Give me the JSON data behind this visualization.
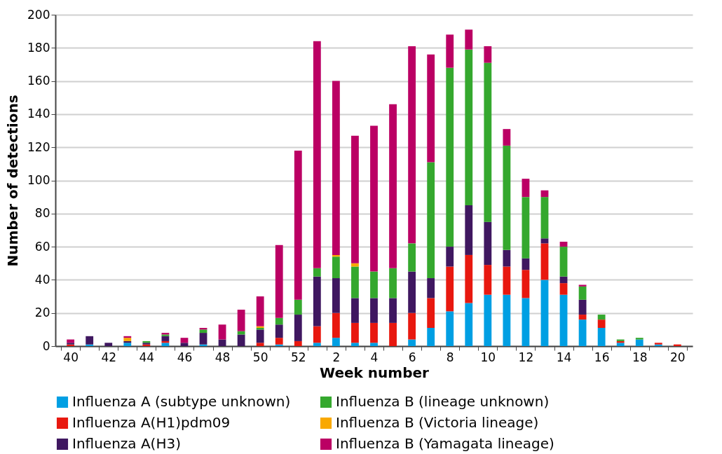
{
  "chart_data": {
    "type": "bar",
    "xlabel": "Week number",
    "ylabel": "Number of detections",
    "categories": [
      "40",
      null,
      "42",
      null,
      "44",
      null,
      "46",
      null,
      "48",
      null,
      "50",
      null,
      "52",
      null,
      "2",
      null,
      "4",
      null,
      "6",
      null,
      "8",
      null,
      "10",
      null,
      "12",
      null,
      "14",
      null,
      "16",
      null,
      "18",
      null,
      "20"
    ],
    "stacked": true,
    "ylim": [
      0,
      200
    ],
    "yticks": [
      0,
      20,
      40,
      60,
      80,
      100,
      120,
      140,
      160,
      180,
      200
    ],
    "grid": "y",
    "legend": "bottom",
    "series": [
      {
        "name": "Influenza A (subtype unknown)",
        "color": "#009fe3",
        "values": [
          0,
          1,
          0,
          2,
          0,
          2,
          0,
          1,
          0,
          0,
          0,
          1,
          0,
          2,
          5,
          2,
          2,
          0,
          4,
          11,
          21,
          26,
          31,
          31,
          29,
          40,
          31,
          16,
          11,
          2,
          4,
          1,
          0
        ]
      },
      {
        "name": "Influenza A(H1)pdm09",
        "color": "#e8180f",
        "values": [
          1,
          0,
          0,
          0,
          1,
          1,
          0,
          0,
          0,
          0,
          2,
          4,
          3,
          10,
          15,
          12,
          12,
          14,
          16,
          18,
          27,
          29,
          18,
          17,
          17,
          22,
          7,
          3,
          5,
          1,
          0,
          1,
          1
        ]
      },
      {
        "name": "Influenza A(H3)",
        "color": "#3f1760",
        "values": [
          1,
          5,
          2,
          1,
          1,
          3,
          2,
          7,
          4,
          7,
          8,
          8,
          16,
          30,
          21,
          15,
          15,
          15,
          25,
          12,
          12,
          30,
          26,
          10,
          7,
          3,
          4,
          9,
          0,
          0,
          0,
          0,
          0
        ]
      },
      {
        "name": "Influenza B (lineage unknown)",
        "color": "#35a82e",
        "values": [
          0,
          0,
          0,
          0,
          1,
          1,
          0,
          2,
          0,
          2,
          1,
          4,
          9,
          5,
          13,
          19,
          16,
          18,
          17,
          70,
          108,
          94,
          96,
          63,
          37,
          25,
          18,
          8,
          3,
          1,
          1,
          0,
          0
        ]
      },
      {
        "name": "Influenza B (Victoria lineage)",
        "color": "#f9a800",
        "values": [
          0,
          0,
          0,
          2,
          0,
          0,
          0,
          0,
          0,
          0,
          1,
          0,
          0,
          0,
          1,
          2,
          0,
          0,
          0,
          0,
          0,
          0,
          0,
          0,
          0,
          0,
          0,
          0,
          0,
          0,
          0,
          0,
          0
        ]
      },
      {
        "name": "Influenza B (Yamagata lineage)",
        "color": "#bb0064",
        "values": [
          2,
          0,
          0,
          1,
          0,
          1,
          3,
          1,
          9,
          13,
          18,
          44,
          90,
          137,
          105,
          77,
          88,
          99,
          119,
          65,
          20,
          12,
          10,
          10,
          11,
          4,
          3,
          1,
          0,
          0,
          0,
          0,
          0
        ]
      }
    ]
  }
}
